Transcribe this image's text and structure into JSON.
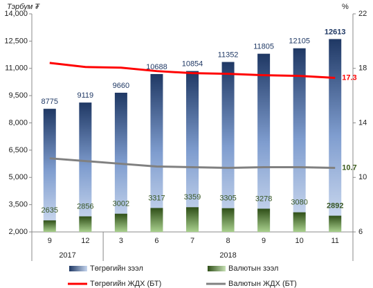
{
  "chart_data": {
    "type": "bar_line",
    "y_label": "Тэрбум ₮",
    "y2_label": "%",
    "categories": [
      "9",
      "12",
      "3",
      "6",
      "7",
      "8",
      "9",
      "10",
      "11"
    ],
    "x_groups": [
      "2017",
      "2018"
    ],
    "series": [
      {
        "name": "Төгрөгийн зээл",
        "kind": "bar",
        "color": "#1f3864",
        "values": [
          8775,
          9119,
          9660,
          10688,
          10854,
          11352,
          11805,
          12105,
          12613
        ]
      },
      {
        "name": "Валютын зээл",
        "kind": "bar",
        "color": "#375623",
        "values": [
          2635,
          2856,
          3002,
          3317,
          3359,
          3305,
          3278,
          3080,
          2892
        ]
      },
      {
        "name": "Төгрөгийн ЖДХ (БТ)",
        "kind": "line",
        "axis": "y2",
        "color": "#ff0000",
        "values": [
          18.4,
          18.1,
          18.05,
          17.8,
          17.65,
          17.6,
          17.5,
          17.45,
          17.3
        ]
      },
      {
        "name": "Валютын ЖДХ (БТ)",
        "kind": "line",
        "axis": "y2",
        "color": "#808080",
        "values": [
          11.4,
          11.2,
          11.0,
          10.8,
          10.75,
          10.7,
          10.75,
          10.75,
          10.7
        ]
      }
    ],
    "ylim": [
      2000,
      14000
    ],
    "yticks": [
      {
        "value": 2000,
        "label": "2,000"
      },
      {
        "value": 3500,
        "label": "3,500"
      },
      {
        "value": 5000,
        "label": "5,000"
      },
      {
        "value": 6500,
        "label": "6,500"
      },
      {
        "value": 8000,
        "label": "8,000"
      },
      {
        "value": 9500,
        "label": "9,500"
      },
      {
        "value": 11000,
        "label": "11,000"
      },
      {
        "value": 12500,
        "label": "12,500"
      },
      {
        "value": 14000,
        "label": "14,000"
      }
    ],
    "y2lim": [
      6,
      22
    ],
    "y2ticks": [
      6,
      10,
      14,
      18,
      22
    ]
  }
}
